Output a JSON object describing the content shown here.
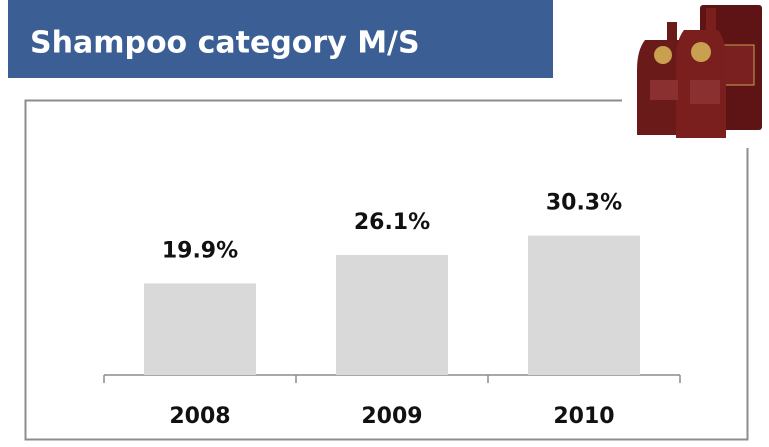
{
  "chart_data": {
    "type": "bar",
    "title": "Shampoo category M/S",
    "categories": [
      "2008",
      "2009",
      "2010"
    ],
    "values": [
      19.9,
      26.1,
      30.3
    ],
    "value_labels": [
      "19.9%",
      "26.1%",
      "30.3%"
    ],
    "color": "#d9d9d9",
    "ylim": [
      0,
      60
    ]
  }
}
